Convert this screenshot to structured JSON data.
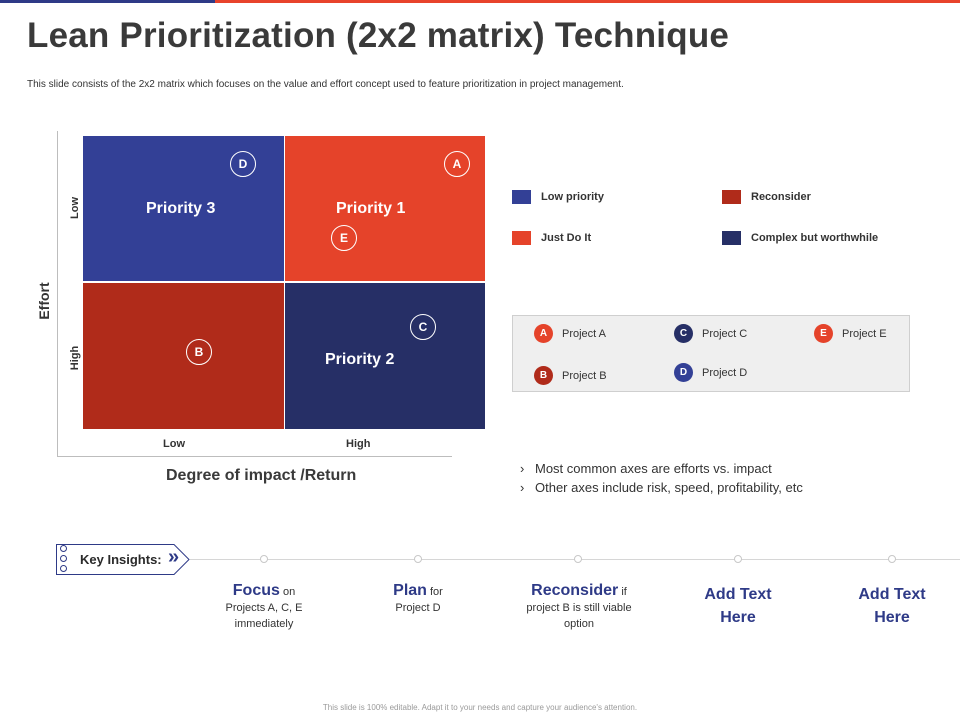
{
  "title": "Lean Prioritization (2x2 matrix) Technique",
  "subtitle": "This slide consists of the 2x2 matrix which focuses on the value and effort concept used to feature prioritization in project management.",
  "matrix": {
    "y_axis_label": "Effort",
    "x_axis_label": "Degree of impact /Return",
    "y_ticks": [
      "Low",
      "High"
    ],
    "x_ticks": [
      "Low",
      "High"
    ],
    "quadrants": [
      {
        "label": "Priority 3",
        "color": "#334096"
      },
      {
        "label": "Priority 1",
        "color": "#E5432A"
      },
      {
        "label": "",
        "color": "#B02B1A"
      },
      {
        "label": "Priority 2",
        "color": "#262F66"
      }
    ],
    "points": [
      "D",
      "A",
      "E",
      "B",
      "C"
    ]
  },
  "legend": [
    {
      "label": "Low priority",
      "color": "#334096"
    },
    {
      "label": "Reconsider",
      "color": "#B02B1A"
    },
    {
      "label": "Just Do It",
      "color": "#E5432A"
    },
    {
      "label": "Complex but worthwhile",
      "color": "#262F66"
    }
  ],
  "projects": [
    {
      "letter": "A",
      "label": "Project A",
      "color": "#E5432A"
    },
    {
      "letter": "C",
      "label": "Project C",
      "color": "#262F66"
    },
    {
      "letter": "E",
      "label": "Project E",
      "color": "#E5432A"
    },
    {
      "letter": "B",
      "label": "Project B",
      "color": "#B02B1A"
    },
    {
      "letter": "D",
      "label": "Project D",
      "color": "#334096"
    }
  ],
  "bullets": [
    "Most common  axes are efforts vs. impact",
    "Other axes include risk, speed, profitability, etc"
  ],
  "insights": {
    "label": "Key Insights:",
    "chevron_icon": "double-chevron-right-icon",
    "items": [
      {
        "keyword": "Focus",
        "rest_inline": " on",
        "detail": "Projects A, C, E immediately"
      },
      {
        "keyword": "Plan",
        "rest_inline": " for",
        "detail": "Project D"
      },
      {
        "keyword": "Reconsider",
        "rest_inline": " if",
        "detail": "project B is still viable option"
      },
      {
        "keyword": "Add Text Here"
      },
      {
        "keyword": "Add Text Here"
      }
    ]
  },
  "footer": "This slide is 100% editable. Adapt it to your needs and capture your audience's attention."
}
